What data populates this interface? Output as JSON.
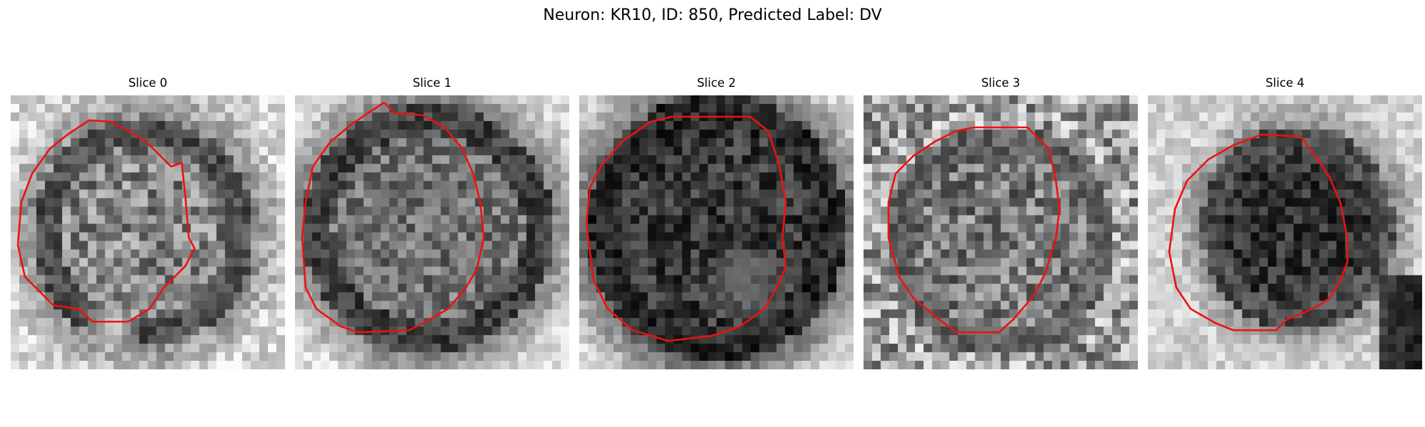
{
  "figure": {
    "title": "Neuron: KR10, ID: 850, Predicted Label: DV"
  },
  "contour_color": "#ee1111",
  "slices": [
    {
      "title": "Slice 0"
    },
    {
      "title": "Slice 1"
    },
    {
      "title": "Slice 2"
    },
    {
      "title": "Slice 3"
    },
    {
      "title": "Slice 4"
    }
  ]
}
